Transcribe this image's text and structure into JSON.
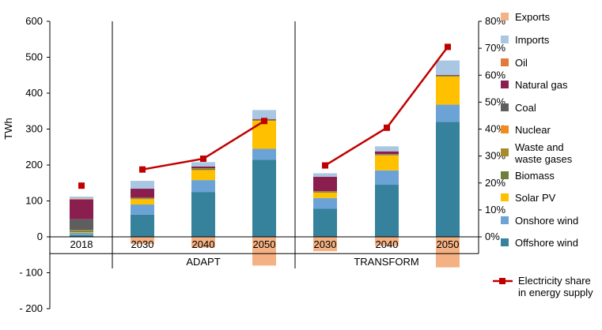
{
  "chart_data": {
    "type": "bar",
    "subtype": "stacked-bar-with-line",
    "ylabel": "TWh",
    "ylim": [
      -200,
      600
    ],
    "yticks": [
      "600",
      "500",
      "400",
      "300",
      "200",
      "100",
      "0",
      "- 100",
      "- 200"
    ],
    "ylim_right": [
      0,
      0.8
    ],
    "yticks_right": [
      "80%",
      "70%",
      "60%",
      "50%",
      "40%",
      "30%",
      "20%",
      "10%",
      "0%"
    ],
    "grid": false,
    "legend_position": "right",
    "categories": [
      "2018",
      "2030",
      "2040",
      "2050",
      "2030",
      "2040",
      "2050"
    ],
    "groups": [
      {
        "label": "ADAPT",
        "categories": [
          1,
          2,
          3
        ]
      },
      {
        "label": "TRANSFORM",
        "categories": [
          4,
          5,
          6
        ]
      }
    ],
    "series": [
      {
        "name": "Offshore wind",
        "color": "#36819C",
        "values": [
          5,
          62,
          125,
          215,
          78,
          145,
          320
        ]
      },
      {
        "name": "Onshore wind",
        "color": "#6BA3D6",
        "values": [
          6,
          28,
          33,
          30,
          30,
          40,
          48
        ]
      },
      {
        "name": "Solar PV",
        "color": "#FFC000",
        "values": [
          2,
          15,
          28,
          78,
          15,
          42,
          78
        ]
      },
      {
        "name": "Biomass",
        "color": "#6E7F3B",
        "values": [
          3,
          2,
          3,
          2,
          2,
          2,
          2
        ]
      },
      {
        "name": "Waste and\nwaste gases",
        "color": "#A68B2C",
        "values": [
          3,
          2,
          2,
          1,
          2,
          1,
          1
        ]
      },
      {
        "name": "Nuclear",
        "color": "#F08C1E",
        "values": [
          0,
          0,
          0,
          0,
          0,
          0,
          0
        ]
      },
      {
        "name": "Coal",
        "color": "#5E5E5E",
        "values": [
          30,
          0,
          0,
          0,
          0,
          0,
          0
        ]
      },
      {
        "name": "Natural gas",
        "color": "#8A1F4F",
        "values": [
          55,
          25,
          5,
          2,
          40,
          8,
          2
        ]
      },
      {
        "name": "Oil",
        "color": "#E07B39",
        "values": [
          2,
          0,
          0,
          0,
          0,
          0,
          0
        ]
      },
      {
        "name": "Imports",
        "color": "#A9C7E3",
        "values": [
          6,
          22,
          12,
          25,
          10,
          14,
          40
        ]
      },
      {
        "name": "Exports",
        "color": "#F4B183",
        "values": [
          0,
          -20,
          -30,
          -80,
          -40,
          -25,
          -85
        ]
      }
    ],
    "line_series": {
      "name": "Electricity share\nin energy supply",
      "color": "#C00000",
      "axis": "right",
      "values": [
        0.19,
        0.25,
        0.29,
        0.43,
        0.265,
        0.405,
        0.705
      ],
      "connected_from_index": 1,
      "break_between": [
        3,
        4
      ]
    },
    "legend_order": [
      "Exports",
      "Imports",
      "Oil",
      "Natural gas",
      "Coal",
      "Nuclear",
      "Waste and\nwaste gases",
      "Biomass",
      "Solar PV",
      "Onshore wind",
      "Offshore wind"
    ]
  }
}
